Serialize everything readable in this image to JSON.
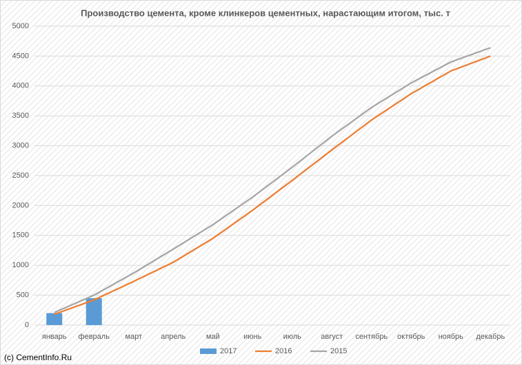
{
  "chart_data": {
    "type": "combo",
    "title": "Производство цемента, кроме клинкеров цементных, нарастающим итогом, тыс. т",
    "categories": [
      "январь",
      "февраль",
      "март",
      "апрель",
      "май",
      "июнь",
      "июль",
      "август",
      "сентябрь",
      "октябрь",
      "ноябрь",
      "декабрь"
    ],
    "series": [
      {
        "name": "2017",
        "type": "bar",
        "color": "#5b9bd5",
        "values": [
          200,
          450,
          null,
          null,
          null,
          null,
          null,
          null,
          null,
          null,
          null,
          null
        ]
      },
      {
        "name": "2016",
        "type": "line",
        "color": "#ed7d31",
        "values": [
          180,
          420,
          730,
          1050,
          1450,
          1920,
          2420,
          2930,
          3430,
          3870,
          4250,
          4500
        ]
      },
      {
        "name": "2015",
        "type": "line",
        "color": "#a5a5a5",
        "values": [
          210,
          500,
          870,
          1270,
          1680,
          2140,
          2640,
          3160,
          3640,
          4050,
          4400,
          4640
        ]
      }
    ],
    "ylim": [
      0,
      5000
    ],
    "yticks": [
      0,
      500,
      1000,
      1500,
      2000,
      2500,
      3000,
      3500,
      4000,
      4500,
      5000
    ],
    "grid": true,
    "legend": "bottom",
    "credit": "(c) CementInfo.Ru"
  }
}
